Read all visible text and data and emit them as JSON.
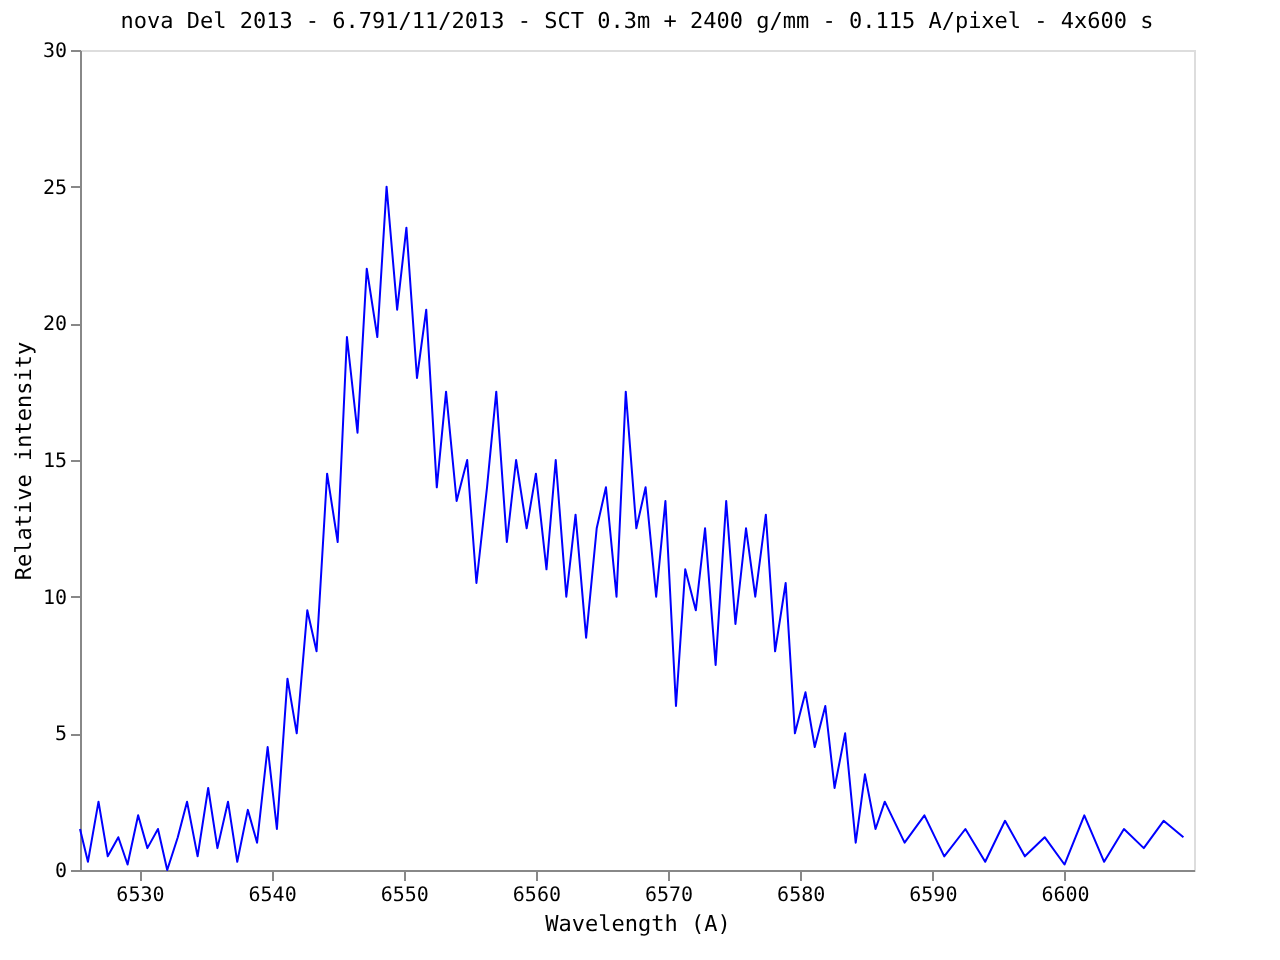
{
  "chart_data": {
    "type": "line",
    "title": "nova Del 2013 - 6.791/11/2013 - SCT 0.3m + 2400 g/mm - 0.115 A/pixel - 4x600 s",
    "xlabel": "Wavelength (A)",
    "ylabel": "Relative intensity",
    "x": [
      6525.5,
      6526.1,
      6526.9,
      6527.6,
      6528.4,
      6529.1,
      6529.9,
      6530.6,
      6531.4,
      6532.1,
      6532.9,
      6533.6,
      6534.4,
      6535.2,
      6535.9,
      6536.7,
      6537.4,
      6538.2,
      6538.9,
      6539.7,
      6540.4,
      6541.2,
      6541.9,
      6542.7,
      6543.4,
      6544.2,
      6545.0,
      6545.7,
      6546.5,
      6547.2,
      6548.0,
      6548.7,
      6549.5,
      6550.2,
      6551.0,
      6551.7,
      6552.5,
      6553.2,
      6554.0,
      6554.8,
      6555.5,
      6556.3,
      6557.0,
      6557.8,
      6558.5,
      6559.3,
      6560.0,
      6560.8,
      6561.5,
      6562.3,
      6563.0,
      6563.8,
      6564.6,
      6565.3,
      6566.1,
      6566.8,
      6567.6,
      6568.3,
      6569.1,
      6569.8,
      6570.6,
      6571.3,
      6572.1,
      6572.8,
      6573.6,
      6574.4,
      6575.1,
      6575.9,
      6576.6,
      6577.4,
      6578.1,
      6578.9,
      6579.6,
      6580.4,
      6581.1,
      6581.9,
      6582.6,
      6583.4,
      6584.2,
      6584.9,
      6585.7,
      6586.4,
      6587.9,
      6589.4,
      6590.9,
      6592.5,
      6594.0,
      6595.5,
      6597.0,
      6598.5,
      6600.0,
      6601.5,
      6603.0,
      6604.5,
      6606.0,
      6607.5,
      6609.0
    ],
    "series": [
      {
        "color": "#0000ff",
        "values": [
          1.5,
          0.3,
          2.5,
          0.5,
          1.2,
          0.2,
          2.0,
          0.8,
          1.5,
          0.0,
          1.2,
          2.5,
          0.5,
          3.0,
          0.8,
          2.5,
          0.3,
          2.2,
          1.0,
          4.5,
          1.5,
          7.0,
          5.0,
          9.5,
          8.0,
          14.5,
          12.0,
          19.5,
          16.0,
          22.0,
          19.5,
          25.0,
          20.5,
          23.5,
          18.0,
          20.5,
          14.0,
          17.5,
          13.5,
          15.0,
          10.5,
          14.0,
          17.5,
          12.0,
          15.0,
          12.5,
          14.5,
          11.0,
          15.0,
          10.0,
          13.0,
          8.5,
          12.5,
          14.0,
          10.0,
          17.5,
          12.5,
          14.0,
          10.0,
          13.5,
          6.0,
          11.0,
          9.5,
          12.5,
          7.5,
          13.5,
          9.0,
          12.5,
          10.0,
          13.0,
          8.0,
          10.5,
          5.0,
          6.5,
          4.5,
          6.0,
          3.0,
          5.0,
          1.0,
          3.5,
          1.5,
          2.5,
          1.0,
          2.0,
          0.5,
          1.5,
          0.3,
          1.8,
          0.5,
          1.2,
          0.2,
          2.0,
          0.3,
          1.5,
          0.8,
          1.8,
          1.2
        ]
      }
    ],
    "xlim": [
      6525.5,
      6609.8
    ],
    "ylim": [
      0,
      30
    ],
    "xticks": [
      6530,
      6540,
      6550,
      6560,
      6570,
      6580,
      6590,
      6600
    ],
    "yticks": [
      0,
      5,
      10,
      15,
      20,
      25,
      30
    ],
    "grid": false,
    "legend": false,
    "marker": "none",
    "line_style": "solid"
  }
}
